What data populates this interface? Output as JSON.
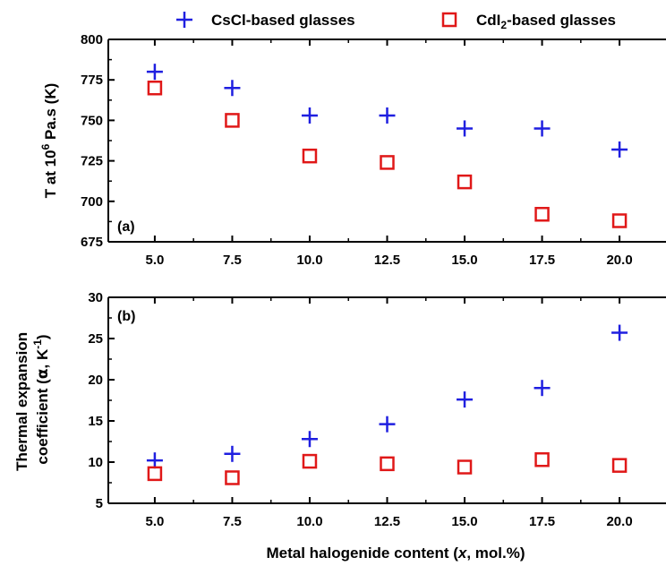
{
  "legend": {
    "series": [
      {
        "name": "CsCl-based glasses",
        "color": "#1f1fe0",
        "marker": "plus"
      },
      {
        "name_main": "CdI",
        "name_sub": "2",
        "name_rest": "-based glasses",
        "color": "#e01818",
        "marker": "square"
      }
    ]
  },
  "xlabel": {
    "prefix": "Metal halogenide content (",
    "var": "x",
    "suffix": ", mol.%)"
  },
  "chart_data": [
    {
      "type": "scatter",
      "panel_label": "(a)",
      "ylabel": {
        "prefix": "T at 10",
        "sup": "6",
        "suffix": " Pa.s (K)"
      },
      "x": [
        5.0,
        7.5,
        10.0,
        12.5,
        15.0,
        17.5,
        20.0
      ],
      "xticks": [
        "5.0",
        "7.5",
        "10.0",
        "12.5",
        "15.0",
        "17.5",
        "20.0"
      ],
      "xlim": [
        3.5,
        21.5
      ],
      "ylim": [
        675,
        800
      ],
      "yticks": [
        675,
        700,
        725,
        750,
        775,
        800
      ],
      "series": [
        {
          "name": "CsCl-based glasses",
          "marker": "plus",
          "color": "#1f1fe0",
          "values": [
            780,
            770,
            753,
            753,
            745,
            745,
            732
          ]
        },
        {
          "name": "CdI2-based glasses",
          "marker": "square",
          "color": "#e01818",
          "values": [
            770,
            750,
            728,
            724,
            712,
            692,
            688
          ]
        }
      ]
    },
    {
      "type": "scatter",
      "panel_label": "(b)",
      "ylabel": {
        "line1": "Thermal expansion",
        "line2_prefix": "coefficient (",
        "symbol": "α",
        "line2_mid": ", K",
        "sup": "-1",
        "line2_suffix": ")"
      },
      "x": [
        5.0,
        7.5,
        10.0,
        12.5,
        15.0,
        17.5,
        20.0
      ],
      "xticks": [
        "5.0",
        "7.5",
        "10.0",
        "12.5",
        "15.0",
        "17.5",
        "20.0"
      ],
      "xlim": [
        3.5,
        21.5
      ],
      "ylim": [
        5,
        30
      ],
      "yticks": [
        5,
        10,
        15,
        20,
        25,
        30
      ],
      "series": [
        {
          "name": "CsCl-based glasses",
          "marker": "plus",
          "color": "#1f1fe0",
          "values": [
            10.2,
            11.0,
            12.8,
            14.6,
            17.6,
            19.0,
            25.7
          ]
        },
        {
          "name": "CdI2-based glasses",
          "marker": "square",
          "color": "#e01818",
          "values": [
            8.6,
            8.1,
            10.1,
            9.8,
            9.4,
            10.3,
            9.6
          ]
        }
      ]
    }
  ]
}
